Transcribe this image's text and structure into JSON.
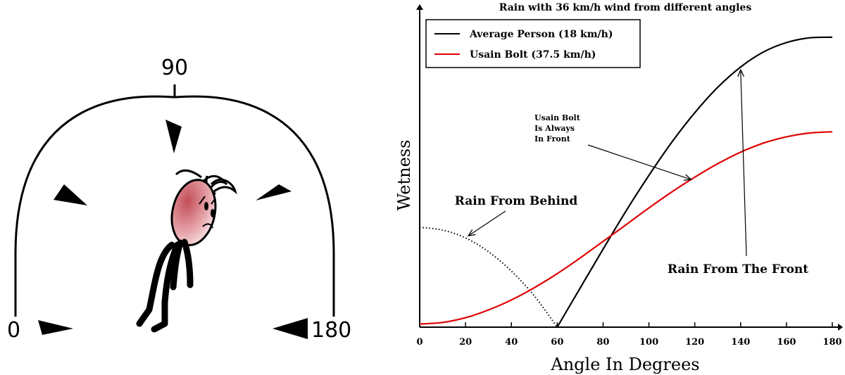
{
  "diagram": {
    "angle_labels": {
      "zero": "0",
      "ninety": "90",
      "one_eighty": "180"
    }
  },
  "chart_data": {
    "type": "line",
    "title": "Rain with 36 km/h wind from different angles",
    "xlabel": "Angle In Degrees",
    "ylabel": "Wetness",
    "xlim": [
      0,
      180
    ],
    "ylim": [
      0,
      10
    ],
    "x_ticks": [
      0,
      20,
      40,
      60,
      80,
      100,
      120,
      140,
      160,
      180
    ],
    "legend_position": "top-left",
    "series": [
      {
        "name": "Average Person (18 km/h)",
        "color": "#000000",
        "style": "solid",
        "x": [
          60,
          70,
          80,
          90,
          100,
          110,
          120,
          130,
          140,
          150,
          160,
          170,
          180
        ],
        "y": [
          0.0,
          1.25,
          2.49,
          3.71,
          4.85,
          5.91,
          6.85,
          7.66,
          8.31,
          8.79,
          9.09,
          9.24,
          9.26
        ]
      },
      {
        "name": "Average Person (18 km/h)",
        "color": "#000000",
        "style": "dotted",
        "legend": false,
        "x": [
          0,
          10,
          20,
          30,
          40,
          50,
          60
        ],
        "y": [
          3.19,
          3.1,
          2.85,
          2.41,
          1.79,
          1.0,
          0.0
        ]
      },
      {
        "name": "Usain Bolt (37.5 km/h)",
        "color": "#e00000",
        "style": "solid",
        "x": [
          0,
          10,
          20,
          30,
          40,
          50,
          60,
          70,
          80,
          90,
          100,
          110,
          120,
          130,
          140,
          150,
          160,
          170,
          180
        ],
        "y": [
          0.1,
          0.15,
          0.3,
          0.55,
          0.87,
          1.26,
          1.71,
          2.21,
          2.74,
          3.27,
          3.81,
          4.32,
          4.79,
          5.22,
          5.59,
          5.88,
          6.08,
          6.2,
          6.24
        ]
      }
    ],
    "annotations": [
      {
        "name": "rain-from-behind",
        "text": "Rain From Behind",
        "point": [
          20,
          2.85
        ],
        "text_at": [
          35,
          4.05
        ]
      },
      {
        "name": "usain-always-front",
        "lines": [
          "Usain Bolt",
          "Is Always",
          "In Front"
        ],
        "point": [
          119,
          4.76
        ],
        "text_at": [
          50,
          6.05
        ]
      },
      {
        "name": "rain-from-front",
        "text": "Rain From The Front",
        "point": [
          140,
          8.31
        ],
        "text_at": [
          140,
          2.14
        ]
      }
    ]
  }
}
